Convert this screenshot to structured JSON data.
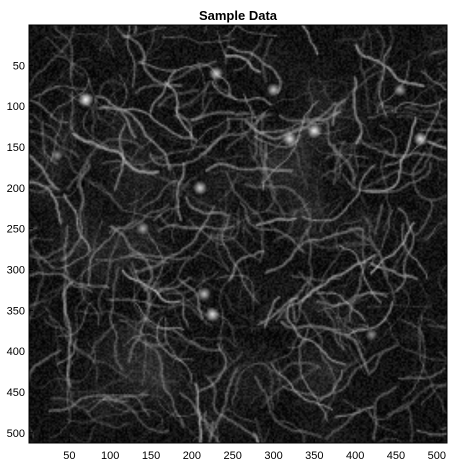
{
  "chart_data": {
    "type": "heatmap",
    "title": "Sample Data",
    "xlabel": "",
    "ylabel": "",
    "colormap": "gray",
    "xlim": [
      0.5,
      512.5
    ],
    "ylim": [
      0.5,
      512.5
    ],
    "y_direction": "reverse",
    "x_ticks": [
      50,
      100,
      150,
      200,
      250,
      300,
      350,
      400,
      450,
      500
    ],
    "y_ticks": [
      50,
      100,
      150,
      200,
      250,
      300,
      350,
      400,
      450,
      500
    ],
    "x_tick_labels": [
      "50",
      "100",
      "150",
      "200",
      "250",
      "300",
      "350",
      "400",
      "450",
      "500"
    ],
    "y_tick_labels": [
      "50",
      "100",
      "150",
      "200",
      "250",
      "300",
      "350",
      "400",
      "450",
      "500"
    ],
    "value_range": [
      0,
      1
    ],
    "bright_spots": [
      {
        "x": 70,
        "y": 92,
        "value": 1.0
      },
      {
        "x": 350,
        "y": 130,
        "value": 0.95
      },
      {
        "x": 320,
        "y": 140,
        "value": 0.9
      },
      {
        "x": 480,
        "y": 140,
        "value": 0.9
      },
      {
        "x": 230,
        "y": 60,
        "value": 0.85
      },
      {
        "x": 300,
        "y": 80,
        "value": 0.8
      },
      {
        "x": 210,
        "y": 200,
        "value": 0.85
      },
      {
        "x": 225,
        "y": 355,
        "value": 0.9
      },
      {
        "x": 215,
        "y": 330,
        "value": 0.8
      },
      {
        "x": 35,
        "y": 160,
        "value": 0.6
      },
      {
        "x": 140,
        "y": 250,
        "value": 0.7
      },
      {
        "x": 420,
        "y": 380,
        "value": 0.6
      },
      {
        "x": 455,
        "y": 80,
        "value": 0.7
      }
    ]
  },
  "colors": {
    "background": "#ffffff",
    "axis": "#000000",
    "text": "#000000"
  }
}
